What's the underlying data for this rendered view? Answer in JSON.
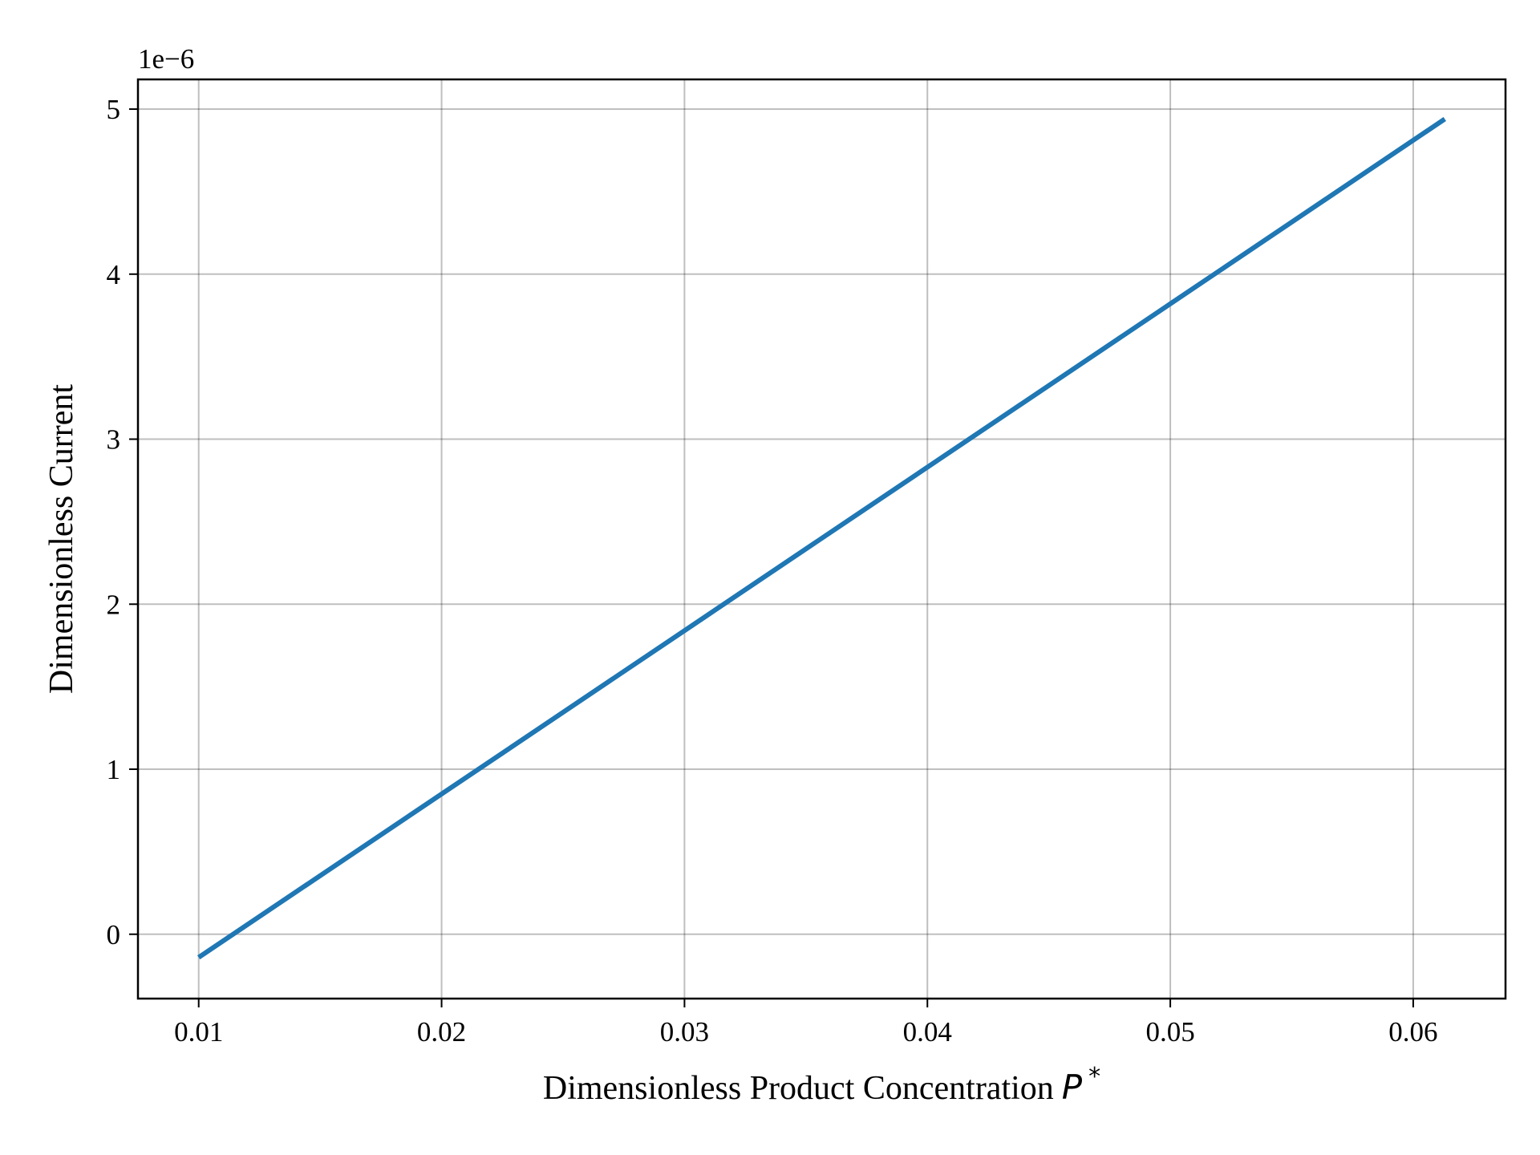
{
  "chart_data": {
    "type": "line",
    "title": "",
    "xlabel": "Dimensionless Product Concentration",
    "xlabel_symbol": "P",
    "xlabel_superscript": "*",
    "ylabel": "Dimensionless Current",
    "y_offset_label": "1e−6",
    "xlim": [
      0.0075,
      0.0638
    ],
    "ylim": [
      -0.39,
      5.18
    ],
    "x_ticks": [
      0.01,
      0.02,
      0.03,
      0.04,
      0.05,
      0.06
    ],
    "x_tick_labels": [
      "0.01",
      "0.02",
      "0.03",
      "0.04",
      "0.05",
      "0.06"
    ],
    "y_ticks": [
      0,
      1,
      2,
      3,
      4,
      5
    ],
    "y_tick_labels": [
      "0",
      "1",
      "2",
      "3",
      "4",
      "5"
    ],
    "grid": true,
    "legend": "none",
    "series": [
      {
        "color": "#1f77b4",
        "x": [
          0.01,
          0.02,
          0.03,
          0.04,
          0.05,
          0.0613
        ],
        "values": [
          -0.14,
          0.85,
          1.84,
          2.83,
          3.82,
          4.94
        ]
      }
    ]
  }
}
